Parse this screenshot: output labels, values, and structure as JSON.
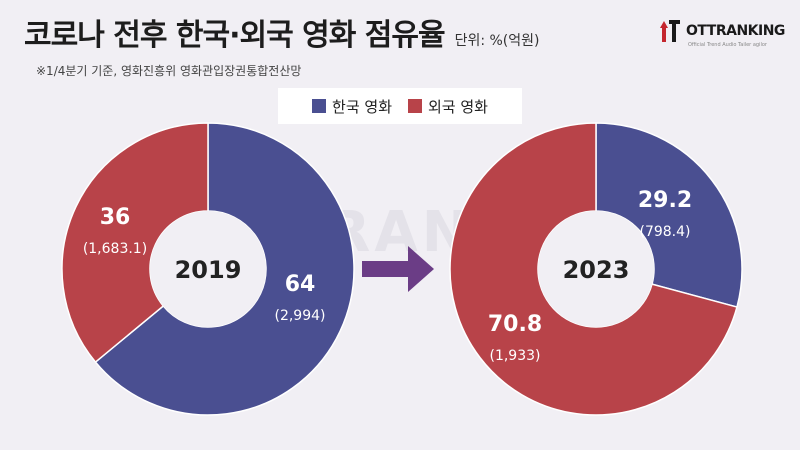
{
  "header": {
    "title": "코로나 전후 한국·외국 영화 점유율",
    "unit": "단위: %(억원)",
    "source": "※1/4분기 기준, 영화진흥위 영화관입장권통합전산망"
  },
  "brand": {
    "name": "OTTRANKING",
    "tagline": "Official Trend Audio Tailer agilor",
    "watermark": "OTTRANKING"
  },
  "colors": {
    "korean": "#4a4f91",
    "foreign": "#b84349",
    "arrow": "#6b3d86",
    "background": "#f1eff4"
  },
  "chart_data": [
    {
      "type": "pie",
      "year": "2019",
      "categories": [
        "한국 영화",
        "외국 영화"
      ],
      "values": [
        64,
        36
      ],
      "value_labels": [
        "64",
        "36"
      ],
      "sub_labels": [
        "(2,994)",
        "(1,683.1)"
      ],
      "amounts": [
        2994,
        1683.1
      ],
      "legend_position": "top"
    },
    {
      "type": "pie",
      "year": "2023",
      "categories": [
        "한국 영화",
        "외국 영화"
      ],
      "values": [
        29.2,
        70.8
      ],
      "value_labels": [
        "29.2",
        "70.8"
      ],
      "sub_labels": [
        "(798.4)",
        "(1,933)"
      ],
      "amounts": [
        798.4,
        1933
      ],
      "legend_position": "top"
    }
  ],
  "legend": [
    {
      "label": "한국 영화",
      "color": "#4a4f91"
    },
    {
      "label": "외국 영화",
      "color": "#b84349"
    }
  ]
}
